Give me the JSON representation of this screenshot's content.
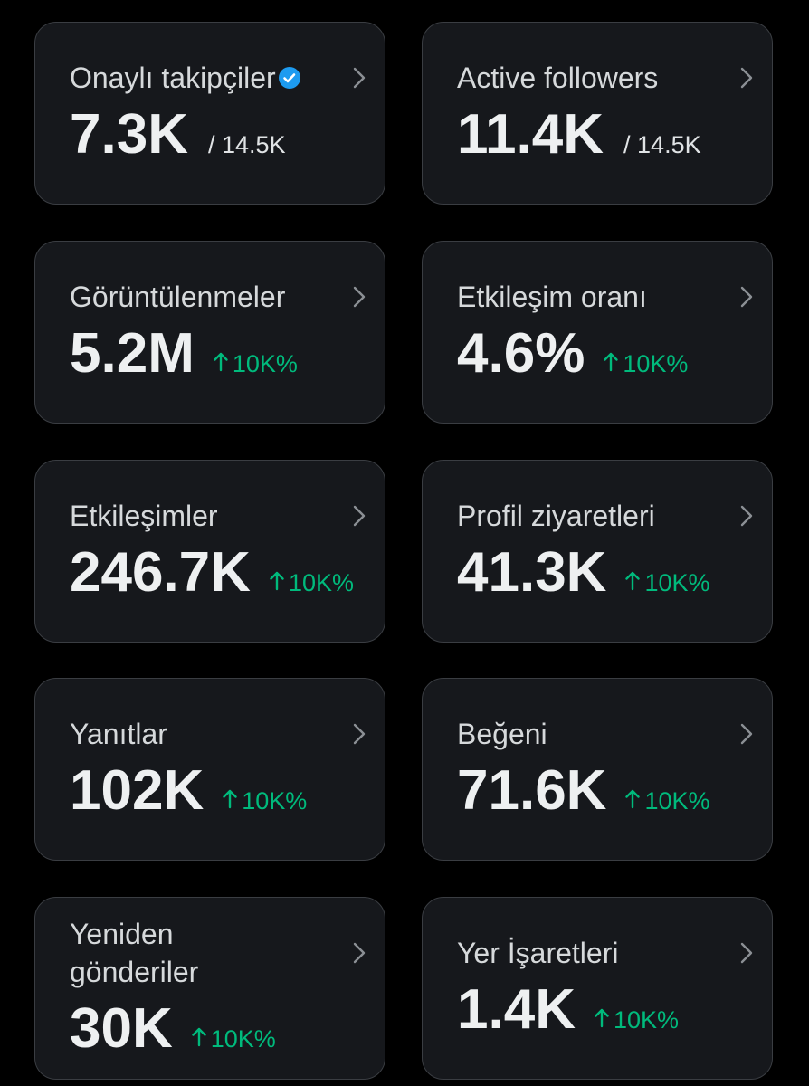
{
  "cards": [
    {
      "title": "Onaylı takipçiler",
      "value": "7.3K",
      "total": "/ 14.5K"
    },
    {
      "title": "Active followers",
      "value": "11.4K",
      "total": "/ 14.5K"
    },
    {
      "title": "Görüntülenmeler",
      "value": "5.2M",
      "change": "10K%"
    },
    {
      "title": "Etkileşim oranı",
      "value": "4.6%",
      "change": "10K%"
    },
    {
      "title": "Etkileşimler",
      "value": "246.7K",
      "change": "10K%"
    },
    {
      "title": "Profil ziyaretleri",
      "value": "41.3K",
      "change": "10K%"
    },
    {
      "title": "Yanıtlar",
      "value": "102K",
      "change": "10K%"
    },
    {
      "title": "Beğeni",
      "value": "71.6K",
      "change": "10K%"
    },
    {
      "title": "Yeniden gönderiler",
      "value": "30K",
      "change": "10K%"
    },
    {
      "title": "Yer İşaretleri",
      "value": "1.4K",
      "change": "10K%"
    }
  ]
}
